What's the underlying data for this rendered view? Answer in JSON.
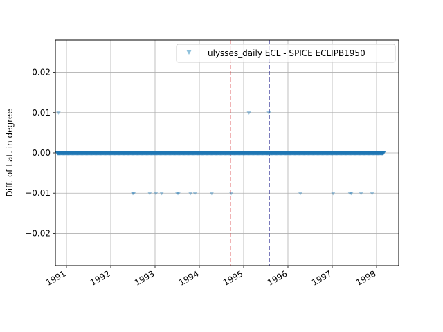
{
  "chart_data": {
    "type": "scatter",
    "title": "",
    "xlabel": "",
    "ylabel": "Diff. of Lat. in degree",
    "xlim": [
      1990.75,
      1998.5
    ],
    "ylim": [
      -0.028,
      0.028
    ],
    "x_ticks": [
      1991,
      1992,
      1993,
      1994,
      1995,
      1996,
      1997,
      1998
    ],
    "x_tick_labels": [
      "1991",
      "1992",
      "1993",
      "1994",
      "1995",
      "1996",
      "1997",
      "1998"
    ],
    "y_ticks": [
      -0.02,
      -0.01,
      0.0,
      0.01,
      0.02
    ],
    "y_tick_labels": [
      "−0.02",
      "−0.01",
      "0.00",
      "0.01",
      "0.02"
    ],
    "grid": true,
    "legend_placement": "top-right",
    "series": [
      {
        "name": "ulysses_daily ECL - SPICE ECLIPB1950",
        "marker": "triangle-down",
        "color": "#1f77b4",
        "legend_color": "#8fc1dc",
        "baseline": {
          "y": 0.0,
          "x_start": 1990.8,
          "x_end": 1998.15
        },
        "outliers": [
          {
            "x": 1990.82,
            "y": 0.01
          },
          {
            "x": 1995.12,
            "y": 0.01
          },
          {
            "x": 1995.57,
            "y": 0.01
          },
          {
            "x": 1992.5,
            "y": -0.01
          },
          {
            "x": 1992.52,
            "y": -0.01
          },
          {
            "x": 1992.88,
            "y": -0.01
          },
          {
            "x": 1993.02,
            "y": -0.01
          },
          {
            "x": 1993.15,
            "y": -0.01
          },
          {
            "x": 1993.5,
            "y": -0.01
          },
          {
            "x": 1993.53,
            "y": -0.01
          },
          {
            "x": 1993.8,
            "y": -0.01
          },
          {
            "x": 1993.9,
            "y": -0.01
          },
          {
            "x": 1994.28,
            "y": -0.01
          },
          {
            "x": 1994.72,
            "y": -0.01
          },
          {
            "x": 1996.28,
            "y": -0.01
          },
          {
            "x": 1997.02,
            "y": -0.01
          },
          {
            "x": 1997.4,
            "y": -0.01
          },
          {
            "x": 1997.43,
            "y": -0.01
          },
          {
            "x": 1997.65,
            "y": -0.01
          },
          {
            "x": 1997.9,
            "y": -0.01
          }
        ]
      }
    ],
    "vlines": [
      {
        "x": 1994.7,
        "color": "#d62728",
        "style": "dashed"
      },
      {
        "x": 1995.58,
        "color": "#1a1a8c",
        "style": "dashed"
      }
    ]
  }
}
